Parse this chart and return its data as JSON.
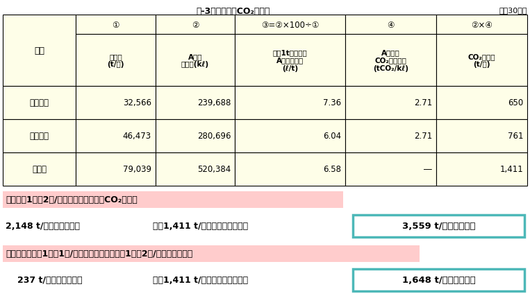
{
  "title": "表-3　他工場のCO₂発生量",
  "year_label": "平成30年度",
  "bg_color": "#ffffff",
  "table_bg": "#fefee8",
  "col_headers_row1": [
    "①",
    "②",
    "③=②×100÷①",
    "④",
    "②×④"
  ],
  "col_headers_row2_lines": [
    [
      "製造数",
      "(t/年)"
    ],
    [
      "A重油",
      "使用量(kℓ)"
    ],
    [
      "製品1t当たりの",
      "A重油使用量",
      "(ℓ/t)"
    ],
    [
      "A重油の",
      "CO₂排出係数",
      "(tCO₂/kℓ)"
    ],
    [
      "CO₂排出量",
      "(t/年)"
    ]
  ],
  "row_header": "工場",
  "rows": [
    [
      "愛知工場",
      "32,566",
      "239,688",
      "7.36",
      "2.71",
      "650"
    ],
    [
      "本社工場",
      "46,473",
      "280,696",
      "6.04",
      "2.71",
      "761"
    ],
    [
      "合　計",
      "79,039",
      "520,384",
      "6.58",
      "―",
      "1,411"
    ]
  ],
  "section1_label": "全工場で1型で2回/日の製造した場合のCO₂発生量",
  "section1_eq_left": "2,148 t/年（三重工場）",
  "section1_eq_mid": "＋　1,411 t/年（他工場）　　＝",
  "section1_result": "3,559 t/年（全工場）",
  "section2_label": "三重工場では、1型で1回/日製造し、他工場は、1型で2回/日製造した場合",
  "section2_eq_left": "237 t/年（三重工場）",
  "section2_eq_mid": "＋　1,411 t/年（他工場）　　＝",
  "section2_result": "1,648 t/年（全工場）",
  "section1_highlight": "#ffcccc",
  "section2_highlight": "#ffcccc",
  "result_box_color": "#4db8b8",
  "figsize": [
    7.63,
    4.31
  ],
  "dpi": 100
}
